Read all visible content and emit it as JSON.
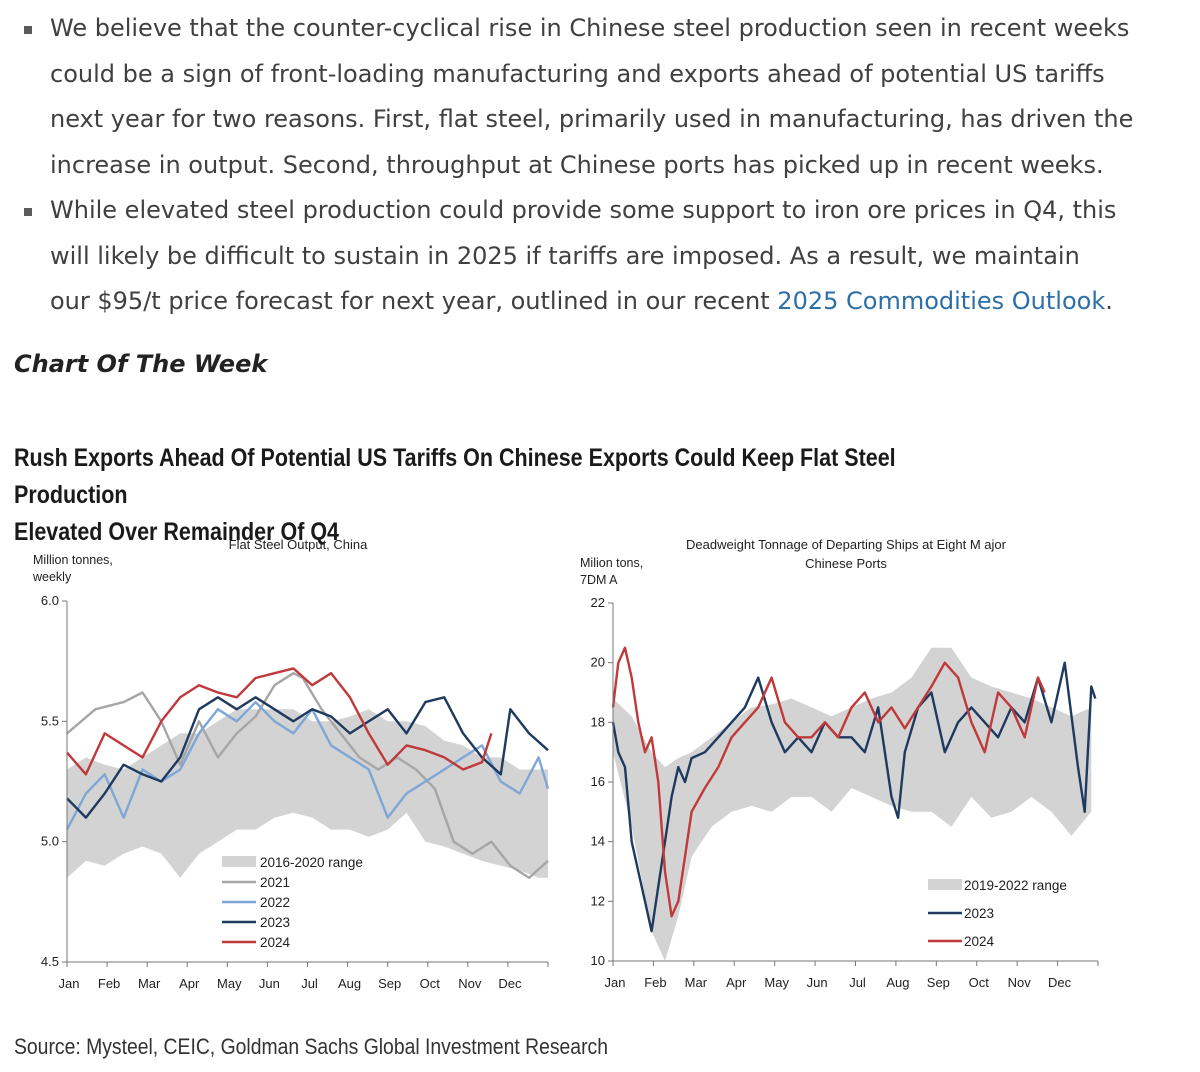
{
  "bullets": [
    {
      "lines": [
        "We believe that the counter-cyclical rise in Chinese steel production seen in recent weeks",
        "could be a sign of front-loading manufacturing and exports ahead of potential US tariffs",
        "next year for two reasons. First, flat steel, primarily used in manufacturing, has driven the",
        "increase in output. Second, throughput at Chinese ports has picked up in recent weeks."
      ]
    },
    {
      "lines": [
        "While elevated steel production could provide some support to iron ore prices in Q4, this",
        "will likely be difficult to sustain in 2025 if tariffs are imposed. As a result, we maintain"
      ],
      "last_line_prefix": "our $95/t price forecast for next year, outlined in our recent ",
      "link_text": "2025 Commodities Outlook",
      "last_line_suffix": "."
    }
  ],
  "section_heading": "Chart Of The Week",
  "figure_title_lines": [
    "Rush Exports Ahead Of Potential US Tariffs On Chinese Exports Could Keep Flat Steel Production",
    "Elevated Over Remainder Of Q4"
  ],
  "source": "Source: Mysteel, CEIC, Goldman Sachs Global Investment Research",
  "chart_data": [
    {
      "type": "line",
      "title": "Flat Steel Output, China",
      "ylabel_lines": [
        "Million tonnes,",
        "weekly"
      ],
      "ylim": [
        4.5,
        6.0
      ],
      "yticks": [
        "4.5",
        "5.0",
        "5.5",
        "6.0"
      ],
      "xticks": [
        "Jan",
        "Feb",
        "Mar",
        "Apr",
        "May",
        "Jun",
        "Jul",
        "Aug",
        "Sep",
        "Oct",
        "Nov",
        "Dec"
      ],
      "x_unit": "week of year (1-52)",
      "legend_placement": "bottom-center",
      "range": {
        "name": "2016-2020 range",
        "color": "#d3d3d3",
        "x": [
          1,
          3,
          5,
          7,
          9,
          11,
          13,
          15,
          17,
          19,
          21,
          23,
          25,
          27,
          29,
          31,
          33,
          35,
          37,
          39,
          41,
          43,
          45,
          47,
          49,
          51,
          52
        ],
        "low": [
          4.85,
          4.92,
          4.9,
          4.95,
          4.98,
          4.95,
          4.85,
          4.95,
          5.0,
          5.05,
          5.05,
          5.1,
          5.12,
          5.1,
          5.05,
          5.05,
          5.02,
          5.05,
          5.12,
          5.0,
          4.98,
          4.95,
          4.92,
          4.9,
          4.88,
          4.85,
          4.85
        ],
        "high": [
          5.3,
          5.35,
          5.32,
          5.3,
          5.35,
          5.4,
          5.45,
          5.45,
          5.5,
          5.55,
          5.55,
          5.55,
          5.55,
          5.5,
          5.5,
          5.52,
          5.55,
          5.5,
          5.5,
          5.48,
          5.42,
          5.4,
          5.35,
          5.35,
          5.3,
          5.3,
          5.3
        ]
      },
      "series": [
        {
          "name": "2021",
          "color": "#a6a6a6",
          "x": [
            1,
            4,
            7,
            9,
            11,
            13,
            15,
            17,
            19,
            21,
            23,
            25,
            26,
            28,
            30,
            32,
            34,
            36,
            38,
            40,
            42,
            44,
            46,
            48,
            50,
            52
          ],
          "y": [
            5.45,
            5.55,
            5.58,
            5.62,
            5.5,
            5.32,
            5.5,
            5.35,
            5.45,
            5.52,
            5.65,
            5.7,
            5.68,
            5.55,
            5.45,
            5.35,
            5.3,
            5.35,
            5.3,
            5.22,
            5.0,
            4.95,
            5.0,
            4.9,
            4.85,
            4.92
          ]
        },
        {
          "name": "2022",
          "color": "#7ea6d6",
          "x": [
            1,
            3,
            5,
            7,
            9,
            11,
            13,
            15,
            17,
            19,
            21,
            23,
            25,
            27,
            29,
            31,
            33,
            35,
            37,
            39,
            41,
            43,
            45,
            47,
            49,
            51,
            52
          ],
          "y": [
            5.05,
            5.2,
            5.28,
            5.1,
            5.3,
            5.25,
            5.3,
            5.45,
            5.55,
            5.5,
            5.58,
            5.5,
            5.45,
            5.55,
            5.4,
            5.35,
            5.3,
            5.1,
            5.2,
            5.25,
            5.3,
            5.35,
            5.4,
            5.25,
            5.2,
            5.35,
            5.22
          ]
        },
        {
          "name": "2023",
          "color": "#1f3a5f",
          "x": [
            1,
            3,
            5,
            7,
            9,
            11,
            13,
            15,
            17,
            19,
            21,
            23,
            25,
            27,
            29,
            31,
            33,
            35,
            37,
            39,
            41,
            43,
            45,
            47,
            48,
            50,
            52
          ],
          "y": [
            5.18,
            5.1,
            5.2,
            5.32,
            5.28,
            5.25,
            5.35,
            5.55,
            5.6,
            5.55,
            5.6,
            5.55,
            5.5,
            5.55,
            5.52,
            5.45,
            5.5,
            5.55,
            5.45,
            5.58,
            5.6,
            5.45,
            5.35,
            5.28,
            5.55,
            5.45,
            5.38
          ]
        },
        {
          "name": "2024",
          "color": "#c0393b",
          "x": [
            1,
            3,
            5,
            7,
            9,
            11,
            13,
            15,
            17,
            19,
            21,
            23,
            25,
            27,
            29,
            31,
            33,
            35,
            37,
            39,
            41,
            43,
            45,
            46
          ],
          "y": [
            5.37,
            5.28,
            5.45,
            5.4,
            5.35,
            5.5,
            5.6,
            5.65,
            5.62,
            5.6,
            5.68,
            5.7,
            5.72,
            5.65,
            5.7,
            5.6,
            5.45,
            5.32,
            5.4,
            5.38,
            5.35,
            5.3,
            5.33,
            5.45
          ]
        }
      ]
    },
    {
      "type": "line",
      "title_lines": [
        "Deadweight  Tonnage  of Departing  Ships at Eight M ajor",
        "Chinese  Ports"
      ],
      "ylabel_lines": [
        "Milion tons,",
        "7DM A"
      ],
      "ylim": [
        10,
        22
      ],
      "yticks": [
        "10",
        "12",
        "14",
        "16",
        "18",
        "20",
        "22"
      ],
      "xticks": [
        "Jan",
        "Feb",
        "Mar",
        "Apr",
        "May",
        "Jun",
        "Jul",
        "Aug",
        "Sep",
        "Oct",
        "Nov",
        "Dec"
      ],
      "x_unit": "day of year (1-365)",
      "legend_placement": "bottom-right",
      "range": {
        "name": "2019-2022 range",
        "color": "#d3d3d3",
        "x": [
          1,
          15,
          30,
          40,
          50,
          60,
          75,
          90,
          105,
          120,
          135,
          150,
          165,
          180,
          195,
          210,
          225,
          240,
          255,
          270,
          285,
          300,
          315,
          330,
          345,
          360
        ],
        "low": [
          17.0,
          14.5,
          11.0,
          10.0,
          11.5,
          13.5,
          14.5,
          15.0,
          15.2,
          15.0,
          15.5,
          15.5,
          15.0,
          15.8,
          15.5,
          15.2,
          15.0,
          15.0,
          14.5,
          15.5,
          14.8,
          15.0,
          15.5,
          15.0,
          14.2,
          15.0
        ],
        "high": [
          18.8,
          18.2,
          17.0,
          16.5,
          16.8,
          17.0,
          17.5,
          18.0,
          18.5,
          18.6,
          18.8,
          18.5,
          18.2,
          18.5,
          18.8,
          19.0,
          19.5,
          20.5,
          20.5,
          19.5,
          19.2,
          19.0,
          18.8,
          18.5,
          18.2,
          18.5
        ]
      },
      "series": [
        {
          "name": "2023",
          "color": "#1f3a5f",
          "x": [
            1,
            5,
            10,
            15,
            20,
            25,
            30,
            35,
            40,
            45,
            50,
            55,
            60,
            70,
            80,
            90,
            100,
            110,
            120,
            130,
            140,
            150,
            160,
            170,
            180,
            190,
            200,
            210,
            215,
            220,
            230,
            240,
            250,
            260,
            270,
            280,
            290,
            300,
            310,
            320,
            330,
            340,
            350,
            355,
            360,
            363
          ],
          "y": [
            18.0,
            17.0,
            16.5,
            14.0,
            13.0,
            12.0,
            11.0,
            12.5,
            14.0,
            15.5,
            16.5,
            16.0,
            16.8,
            17.0,
            17.5,
            18.0,
            18.5,
            19.5,
            18.0,
            17.0,
            17.5,
            17.0,
            18.0,
            17.5,
            17.5,
            17.0,
            18.5,
            15.5,
            14.8,
            17.0,
            18.5,
            19.0,
            17.0,
            18.0,
            18.5,
            18.0,
            17.5,
            18.5,
            18.0,
            19.5,
            18.0,
            20.0,
            16.5,
            15.0,
            19.2,
            18.8
          ]
        },
        {
          "name": "2024",
          "color": "#c0393b",
          "x": [
            1,
            5,
            10,
            15,
            20,
            25,
            30,
            35,
            40,
            45,
            50,
            55,
            60,
            70,
            80,
            90,
            100,
            110,
            120,
            130,
            140,
            150,
            160,
            170,
            180,
            190,
            200,
            210,
            220,
            230,
            240,
            250,
            260,
            270,
            280,
            290,
            300,
            310,
            320,
            325
          ],
          "y": [
            18.5,
            20.0,
            20.5,
            19.5,
            18.0,
            17.0,
            17.5,
            16.0,
            13.0,
            11.5,
            12.0,
            13.5,
            15.0,
            15.8,
            16.5,
            17.5,
            18.0,
            18.5,
            19.5,
            18.0,
            17.5,
            17.5,
            18.0,
            17.5,
            18.5,
            19.0,
            18.0,
            18.5,
            17.8,
            18.5,
            19.2,
            20.0,
            19.5,
            18.0,
            17.0,
            19.0,
            18.5,
            17.5,
            19.5,
            19.0
          ]
        }
      ]
    }
  ]
}
